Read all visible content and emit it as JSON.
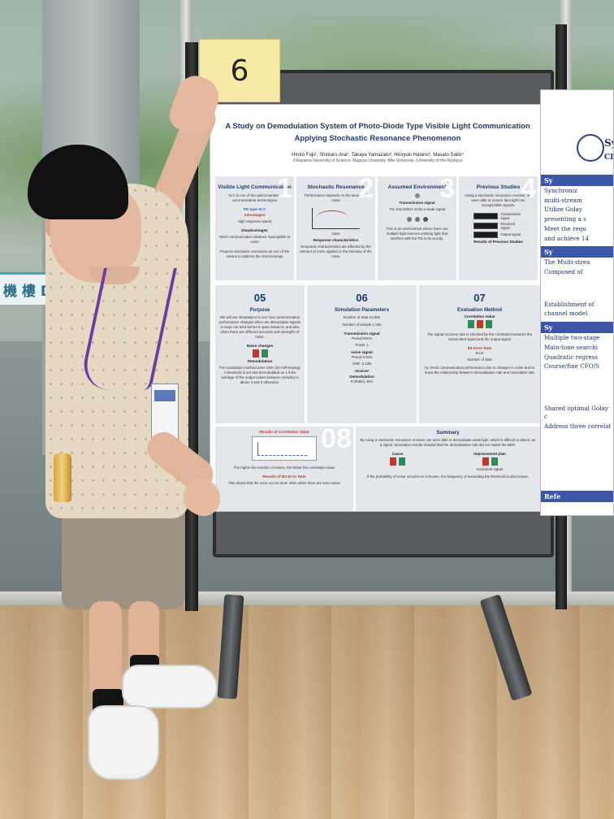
{
  "easel_number": "6",
  "poster": {
    "title_line1": "A Study on Demodulation System of Photo-Diode Type Visible Light Communication",
    "title_line2": "Applying Stochastic Resonance Phenomenon",
    "authors": "Hiroto Fujii¹, Shintaro Arai¹, Takaya Yamazato², Hiroyuki Hatano³, Masato Saito⁴",
    "affiliations": "¹Okayama University of Science  ²Nagoya University  ³Mie University  ⁴University of the Ryukyus",
    "panels_top": [
      {
        "num": "1",
        "title": "Visible Light Communication",
        "text": "VLC is one of the optical wireless communication technologies",
        "sub": "PD type VLC",
        "adv_label": "Advantages",
        "adv": "High response speed",
        "dis_label": "Disadvantages",
        "dis": "Short communication distance Susceptible to noise",
        "note": "Propose stochastic resonance as one of the means to address the shortcomings"
      },
      {
        "num": "2",
        "title": "Stochastic Resonance",
        "text": "Performance depends on the amount of noise",
        "axis_x": "noise",
        "axis_y": "Performance",
        "caption": "Response characteristics",
        "note": "Response characteristics are affected by the amount of noise applied or the intensity of the noise"
      },
      {
        "num": "3",
        "title": "Assumed Environment",
        "sig_label": "Transmission signal",
        "sig_text": "The transmitter emits a weak signal",
        "note": "This is an environment where there are multiple light sources emitting light that interfere with the PD in its vicinity."
      },
      {
        "num": "4",
        "title": "Previous Studies",
        "text": "Using a stochastic resonance receiver, we were able to restore faint light into recognizable signals.",
        "sig1": "Transmission signal",
        "sig2": "Received signal",
        "sig3": "Output signal",
        "caption": "Results of Previous Studies"
      }
    ],
    "purpose": {
      "num": "05",
      "title": "Purpose",
      "text": "We will use simulations to see how communication performance changes when we demodulate signals in ways not tried before in past research, and also when there are different amounts and strengths of noise.",
      "noise_label": "Noise changes",
      "demod_label": "Demodulation",
      "demod_text": "The modulation method uses OOK (On-Off-Keying). A threshold is set and demodulated as 1 if the average of the output values between samples is above it and 0 otherwise."
    },
    "sim": {
      "num": "06",
      "title": "Simulation Parameters",
      "data_count": "Number of data   10,000",
      "sample_count": "Number of sample  1,000",
      "tx_label": "Transmission signal",
      "tx_period": "Period  50ms",
      "tx_power": "Power  1",
      "noise_label": "noise signal",
      "noise_period": "Period  0.5ms",
      "noise_snr": "SNR  -2.1dB",
      "rx_label": "receiver",
      "demod_label": "Demodulation",
      "demod_val": "R (Ratio)  40%"
    },
    "eval": {
      "num": "07",
      "title": "Evaluation Method",
      "corr_label": "Correlation Value",
      "corr_text": "The signal recovery rate is checked by the correlation between the transmitted signal and the output signal",
      "ber_label": "Bit Error Rate",
      "error_label": "Error",
      "data_label": "Number of data",
      "ber_text": "by check communication performance due to changes in noise and to know the relationship between demodulation rate and restoration rate"
    },
    "results": {
      "num": "08",
      "corr_title": "Results of Correlation Value",
      "corr_note": "The higher the number of noises, the better the correlation value",
      "ber_title": "Results of Bit Error Rate",
      "ber_note": "This shows that the error occurs more often when there are less noises"
    },
    "summary": {
      "title": "Summary",
      "text": "By using a stochastic resonance receiver, we were able to demodulate weak light, which is difficult to detect, as a signal. Simulation results showed that the demodulation rate did not match the BER.",
      "cause": "Cause",
      "plan": "Improvement plan",
      "plan_note": "Increased signal",
      "footer": "If the probability of noise occurrence is known, the frequency of exceeding the threshold is also known."
    }
  },
  "right_poster": {
    "line1": "Sy",
    "line2": "CI",
    "band1": "Sy",
    "items": [
      "Synchroniz",
      "multi-stream",
      "Utilize Golay",
      "presenting a s",
      "Meet the requ",
      "and achieve 14"
    ],
    "band2": "Sy",
    "items2": [
      "The Multi-strea",
      "Composed of"
    ],
    "items3": [
      "Establishment of",
      "channel model"
    ],
    "band3": "Sy",
    "items4": [
      "Multiple two-stage",
      "Main-tone searchi",
      "Quadratic regress",
      "Course/fine CFO/S"
    ],
    "items5": [
      "Shared optimal Golay c",
      "Address three correlat"
    ],
    "footer": "Refe"
  },
  "sign_text": "機 樓 D",
  "colors": {
    "poster_title": "#1f3b66",
    "accent_red": "#c0392b",
    "lanyard": "#6a3ea1",
    "band_blue": "#3b55a7"
  }
}
